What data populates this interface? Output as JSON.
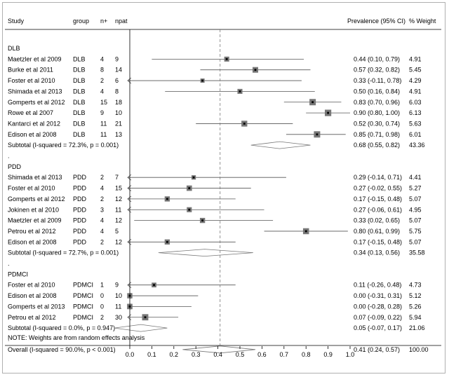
{
  "headers": {
    "study": "Study",
    "group": "group",
    "n_plus": "n+",
    "npat": "npat",
    "prevalence": "Prevalence (95% CI)",
    "weight": "% Weight"
  },
  "note": "NOTE: Weights are from random effects analysis",
  "chart_data": {
    "type": "forest",
    "xlim": [
      0.0,
      1.0
    ],
    "x_ticks": [
      "0.0",
      "0.1",
      "0.2",
      "0.3",
      "0.4",
      "0.5",
      "0.6",
      "0.7",
      "0.8",
      "0.9",
      "1.0"
    ],
    "reference_line": 0.41,
    "rows": [
      {
        "kind": "group",
        "label": "DLB"
      },
      {
        "kind": "study",
        "study": "Maetzler et al 2009",
        "group": "DLB",
        "n_plus": "4",
        "npat": "9",
        "est": 0.44,
        "lo": 0.1,
        "hi": 0.79,
        "ci_text": "0.44 (0.10, 0.79)",
        "weight": "4.91"
      },
      {
        "kind": "study",
        "study": "Burke et al 2011",
        "group": "DLB",
        "n_plus": "8",
        "npat": "14",
        "est": 0.57,
        "lo": 0.32,
        "hi": 0.82,
        "ci_text": "0.57 (0.32, 0.82)",
        "weight": "5.45"
      },
      {
        "kind": "study",
        "study": "Foster et al 2010",
        "group": "DLB",
        "n_plus": "2",
        "npat": "6",
        "est": 0.33,
        "lo": -0.11,
        "hi": 0.78,
        "ci_text": "0.33 (-0.11, 0.78)",
        "weight": "4.29"
      },
      {
        "kind": "study",
        "study": "Shimada et al 2013",
        "group": "DLB",
        "n_plus": "4",
        "npat": "8",
        "est": 0.5,
        "lo": 0.16,
        "hi": 0.84,
        "ci_text": "0.50 (0.16, 0.84)",
        "weight": "4.91"
      },
      {
        "kind": "study",
        "study": "Gomperts et al 2012",
        "group": "DLB",
        "n_plus": "15",
        "npat": "18",
        "est": 0.83,
        "lo": 0.7,
        "hi": 0.96,
        "ci_text": "0.83 (0.70, 0.96)",
        "weight": "6.03"
      },
      {
        "kind": "study",
        "study": "Rowe et al 2007",
        "group": "DLB",
        "n_plus": "9",
        "npat": "10",
        "est": 0.9,
        "lo": 0.8,
        "hi": 1.0,
        "ci_text": "0.90 (0.80, 1.00)",
        "weight": "6.13"
      },
      {
        "kind": "study",
        "study": "Kantarci et al 2012",
        "group": "DLB",
        "n_plus": "11",
        "npat": "21",
        "est": 0.52,
        "lo": 0.3,
        "hi": 0.74,
        "ci_text": "0.52 (0.30, 0.74)",
        "weight": "5.63"
      },
      {
        "kind": "study",
        "study": "Edison et al 2008",
        "group": "DLB",
        "n_plus": "11",
        "npat": "13",
        "est": 0.85,
        "lo": 0.71,
        "hi": 0.98,
        "ci_text": "0.85 (0.71, 0.98)",
        "weight": "6.01"
      },
      {
        "kind": "subtotal",
        "study": "Subtotal  (I-squared = 72.3%, p = 0.001)",
        "est": 0.68,
        "lo": 0.55,
        "hi": 0.82,
        "ci_text": "0.68 (0.55, 0.82)",
        "weight": "43.36"
      },
      {
        "kind": "dot",
        "label": "."
      },
      {
        "kind": "group",
        "label": "PDD"
      },
      {
        "kind": "study",
        "study": "Shimada et al 2013",
        "group": "PDD",
        "n_plus": "2",
        "npat": "7",
        "est": 0.29,
        "lo": -0.14,
        "hi": 0.71,
        "ci_text": "0.29 (-0.14, 0.71)",
        "weight": "4.41"
      },
      {
        "kind": "study",
        "study": "Foster et al 2010",
        "group": "PDD",
        "n_plus": "4",
        "npat": "15",
        "est": 0.27,
        "lo": -0.02,
        "hi": 0.55,
        "ci_text": "0.27 (-0.02, 0.55)",
        "weight": "5.27"
      },
      {
        "kind": "study",
        "study": "Gomperts et al 2012",
        "group": "PDD",
        "n_plus": "2",
        "npat": "12",
        "est": 0.17,
        "lo": -0.15,
        "hi": 0.48,
        "ci_text": "0.17 (-0.15, 0.48)",
        "weight": "5.07"
      },
      {
        "kind": "study",
        "study": "Jokinen et al 2010",
        "group": "PDD",
        "n_plus": "3",
        "npat": "11",
        "est": 0.27,
        "lo": -0.06,
        "hi": 0.61,
        "ci_text": "0.27 (-0.06, 0.61)",
        "weight": "4.95"
      },
      {
        "kind": "study",
        "study": "Maetzler et al 2009",
        "group": "PDD",
        "n_plus": "4",
        "npat": "12",
        "est": 0.33,
        "lo": 0.02,
        "hi": 0.65,
        "ci_text": "0.33 (0.02, 0.65)",
        "weight": "5.07"
      },
      {
        "kind": "study",
        "study": "Petrou et al 2012",
        "group": "PDD",
        "n_plus": "4",
        "npat": "5",
        "est": 0.8,
        "lo": 0.61,
        "hi": 0.99,
        "ci_text": "0.80 (0.61, 0.99)",
        "weight": "5.75"
      },
      {
        "kind": "study",
        "study": "Edison et al 2008",
        "group": "PDD",
        "n_plus": "2",
        "npat": "12",
        "est": 0.17,
        "lo": -0.15,
        "hi": 0.48,
        "ci_text": "0.17 (-0.15, 0.48)",
        "weight": "5.07"
      },
      {
        "kind": "subtotal",
        "study": "Subtotal  (I-squared = 72.7%, p = 0.001)",
        "est": 0.34,
        "lo": 0.13,
        "hi": 0.56,
        "ci_text": "0.34 (0.13, 0.56)",
        "weight": "35.58"
      },
      {
        "kind": "dot",
        "label": "."
      },
      {
        "kind": "group",
        "label": "PDMCI"
      },
      {
        "kind": "study",
        "study": "Foster et al 2010",
        "group": "PDMCI",
        "n_plus": "1",
        "npat": "9",
        "est": 0.11,
        "lo": -0.26,
        "hi": 0.48,
        "ci_text": "0.11 (-0.26, 0.48)",
        "weight": "4.73"
      },
      {
        "kind": "study",
        "study": "Edison et al 2008",
        "group": "PDMCI",
        "n_plus": "0",
        "npat": "10",
        "est": 0.0,
        "lo": -0.31,
        "hi": 0.31,
        "ci_text": "0.00 (-0.31, 0.31)",
        "weight": "5.12"
      },
      {
        "kind": "study",
        "study": "Gomperts et al 2013",
        "group": "PDMCI",
        "n_plus": "0",
        "npat": "11",
        "est": 0.0,
        "lo": -0.28,
        "hi": 0.28,
        "ci_text": "0.00 (-0.28, 0.28)",
        "weight": "5.26"
      },
      {
        "kind": "study",
        "study": "Petrou et al 2012",
        "group": "PDMCI",
        "n_plus": "2",
        "npat": "30",
        "est": 0.07,
        "lo": -0.09,
        "hi": 0.22,
        "ci_text": "0.07 (-0.09, 0.22)",
        "weight": "5.94"
      },
      {
        "kind": "subtotal",
        "study": "Subtotal  (I-squared = 0.0%, p = 0.947)",
        "est": 0.05,
        "lo": -0.07,
        "hi": 0.17,
        "ci_text": "0.05 (-0.07, 0.17)",
        "weight": "21.06"
      },
      {
        "kind": "dot",
        "label": "."
      },
      {
        "kind": "overall",
        "study": "Overall  (I-squared = 90.0%, p < 0.001)",
        "est": 0.41,
        "lo": 0.24,
        "hi": 0.57,
        "ci_text": "0.41 (0.24, 0.57)",
        "weight": "100.00"
      }
    ]
  }
}
